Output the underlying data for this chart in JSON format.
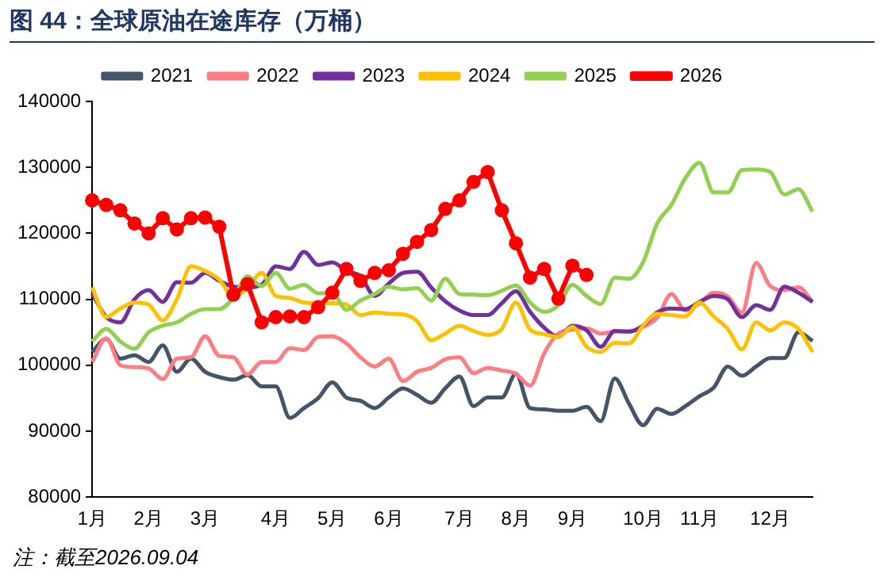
{
  "chart_data": {
    "type": "line",
    "title": "图 44：全球原油在途库存（万桶）",
    "categories": [
      "1月",
      null,
      null,
      null,
      "2月",
      null,
      null,
      null,
      "3月",
      null,
      null,
      null,
      null,
      "4月",
      null,
      null,
      null,
      "5月",
      null,
      null,
      null,
      "6月",
      null,
      null,
      null,
      null,
      "7月",
      null,
      null,
      null,
      "8月",
      null,
      null,
      null,
      "9月",
      null,
      null,
      null,
      null,
      "10月",
      null,
      null,
      null,
      "11月",
      null,
      null,
      null,
      null,
      "12月",
      null,
      null,
      null
    ],
    "series": [
      {
        "name": "2021",
        "color": "#44546a",
        "marker": "none",
        "values": [
          102000,
          104000,
          101000,
          101500,
          100500,
          103000,
          99000,
          101000,
          99000,
          98200,
          97800,
          98500,
          96800,
          96800,
          92000,
          93500,
          95000,
          97400,
          95100,
          94600,
          93500,
          95100,
          96500,
          95500,
          94300,
          96500,
          98300,
          93800,
          95100,
          95100,
          98700,
          93500,
          93300,
          93100,
          93100,
          93700,
          91500,
          98000,
          94200,
          90900,
          93400,
          92600,
          93800,
          95300,
          96600,
          99800,
          98400,
          99800,
          101100,
          101100,
          105000,
          103700
        ]
      },
      {
        "name": "2022",
        "color": "#ff7c80",
        "marker": "none",
        "values": [
          100500,
          104100,
          100000,
          99700,
          99500,
          97900,
          101000,
          101200,
          104400,
          101400,
          101200,
          98600,
          100500,
          100500,
          102600,
          102300,
          104300,
          104400,
          103300,
          101200,
          99800,
          101000,
          97600,
          99000,
          99600,
          100900,
          101200,
          98800,
          99600,
          99200,
          98700,
          96900,
          101800,
          104800,
          105400,
          105600,
          104800,
          105100,
          105100,
          105800,
          107200,
          110800,
          108300,
          109400,
          111000,
          110400,
          108000,
          115500,
          112000,
          111400,
          111800,
          109600
        ]
      },
      {
        "name": "2023",
        "color": "#7030a0",
        "marker": "none",
        "values": [
          110900,
          107300,
          106500,
          110000,
          111400,
          109600,
          112600,
          112500,
          114000,
          112800,
          111900,
          111800,
          112200,
          115000,
          114600,
          117200,
          115200,
          115600,
          114300,
          113500,
          110500,
          112400,
          114000,
          114200,
          111800,
          109700,
          108300,
          107600,
          107600,
          109400,
          111200,
          108100,
          105700,
          104300,
          106000,
          105300,
          102800,
          105200,
          105100,
          106000,
          108000,
          108600,
          108500,
          109600,
          110500,
          110000,
          107300,
          109100,
          108400,
          111900,
          111000,
          109600
        ]
      },
      {
        "name": "2024",
        "color": "#ffc000",
        "marker": "none",
        "values": [
          111800,
          107300,
          108600,
          109500,
          109200,
          106800,
          110000,
          115000,
          114300,
          113000,
          110400,
          111700,
          114000,
          110500,
          110200,
          109500,
          109400,
          109400,
          109200,
          107600,
          108000,
          107800,
          107700,
          106700,
          103800,
          104800,
          106000,
          105200,
          104600,
          105500,
          109500,
          105400,
          104700,
          104300,
          105800,
          102800,
          102000,
          103400,
          103300,
          106000,
          107800,
          107600,
          107400,
          109500,
          107400,
          105500,
          102400,
          106500,
          105300,
          106500,
          105500,
          102000
        ]
      },
      {
        "name": "2025",
        "color": "#92d050",
        "marker": "none",
        "values": [
          103600,
          105500,
          103600,
          102500,
          105000,
          106000,
          106500,
          107800,
          108500,
          108500,
          110200,
          113500,
          112000,
          114000,
          111600,
          112200,
          110900,
          111000,
          108400,
          109800,
          110800,
          111900,
          111500,
          111700,
          109800,
          113100,
          110800,
          110700,
          110600,
          111300,
          112100,
          109500,
          108100,
          109100,
          112200,
          110500,
          109300,
          113300,
          113100,
          115600,
          121500,
          124300,
          128400,
          130700,
          126200,
          126200,
          129600,
          129700,
          129300,
          125900,
          126700,
          123300
        ]
      },
      {
        "name": "2026",
        "color": "#ff0000",
        "marker": "circle",
        "values": [
          125000,
          124300,
          123500,
          121500,
          120000,
          122300,
          120600,
          122300,
          122400,
          121000,
          110700,
          112300,
          106500,
          107300,
          107400,
          107300,
          108800,
          111000,
          114600,
          112800,
          114000,
          114400,
          116900,
          118700,
          120500,
          123700,
          125000,
          127800,
          129300,
          123500,
          118500,
          113300,
          114600,
          110100,
          115100,
          113700,
          null,
          null,
          null,
          null,
          null,
          null,
          null,
          null,
          null,
          null,
          null,
          null,
          null,
          null,
          null,
          null
        ]
      }
    ],
    "ylim": [
      80000,
      140000
    ],
    "yticks": [
      80000,
      90000,
      100000,
      110000,
      120000,
      130000,
      140000
    ],
    "grid": false,
    "legend": "top",
    "annotations": [
      "注：截至2026.09.04"
    ]
  }
}
